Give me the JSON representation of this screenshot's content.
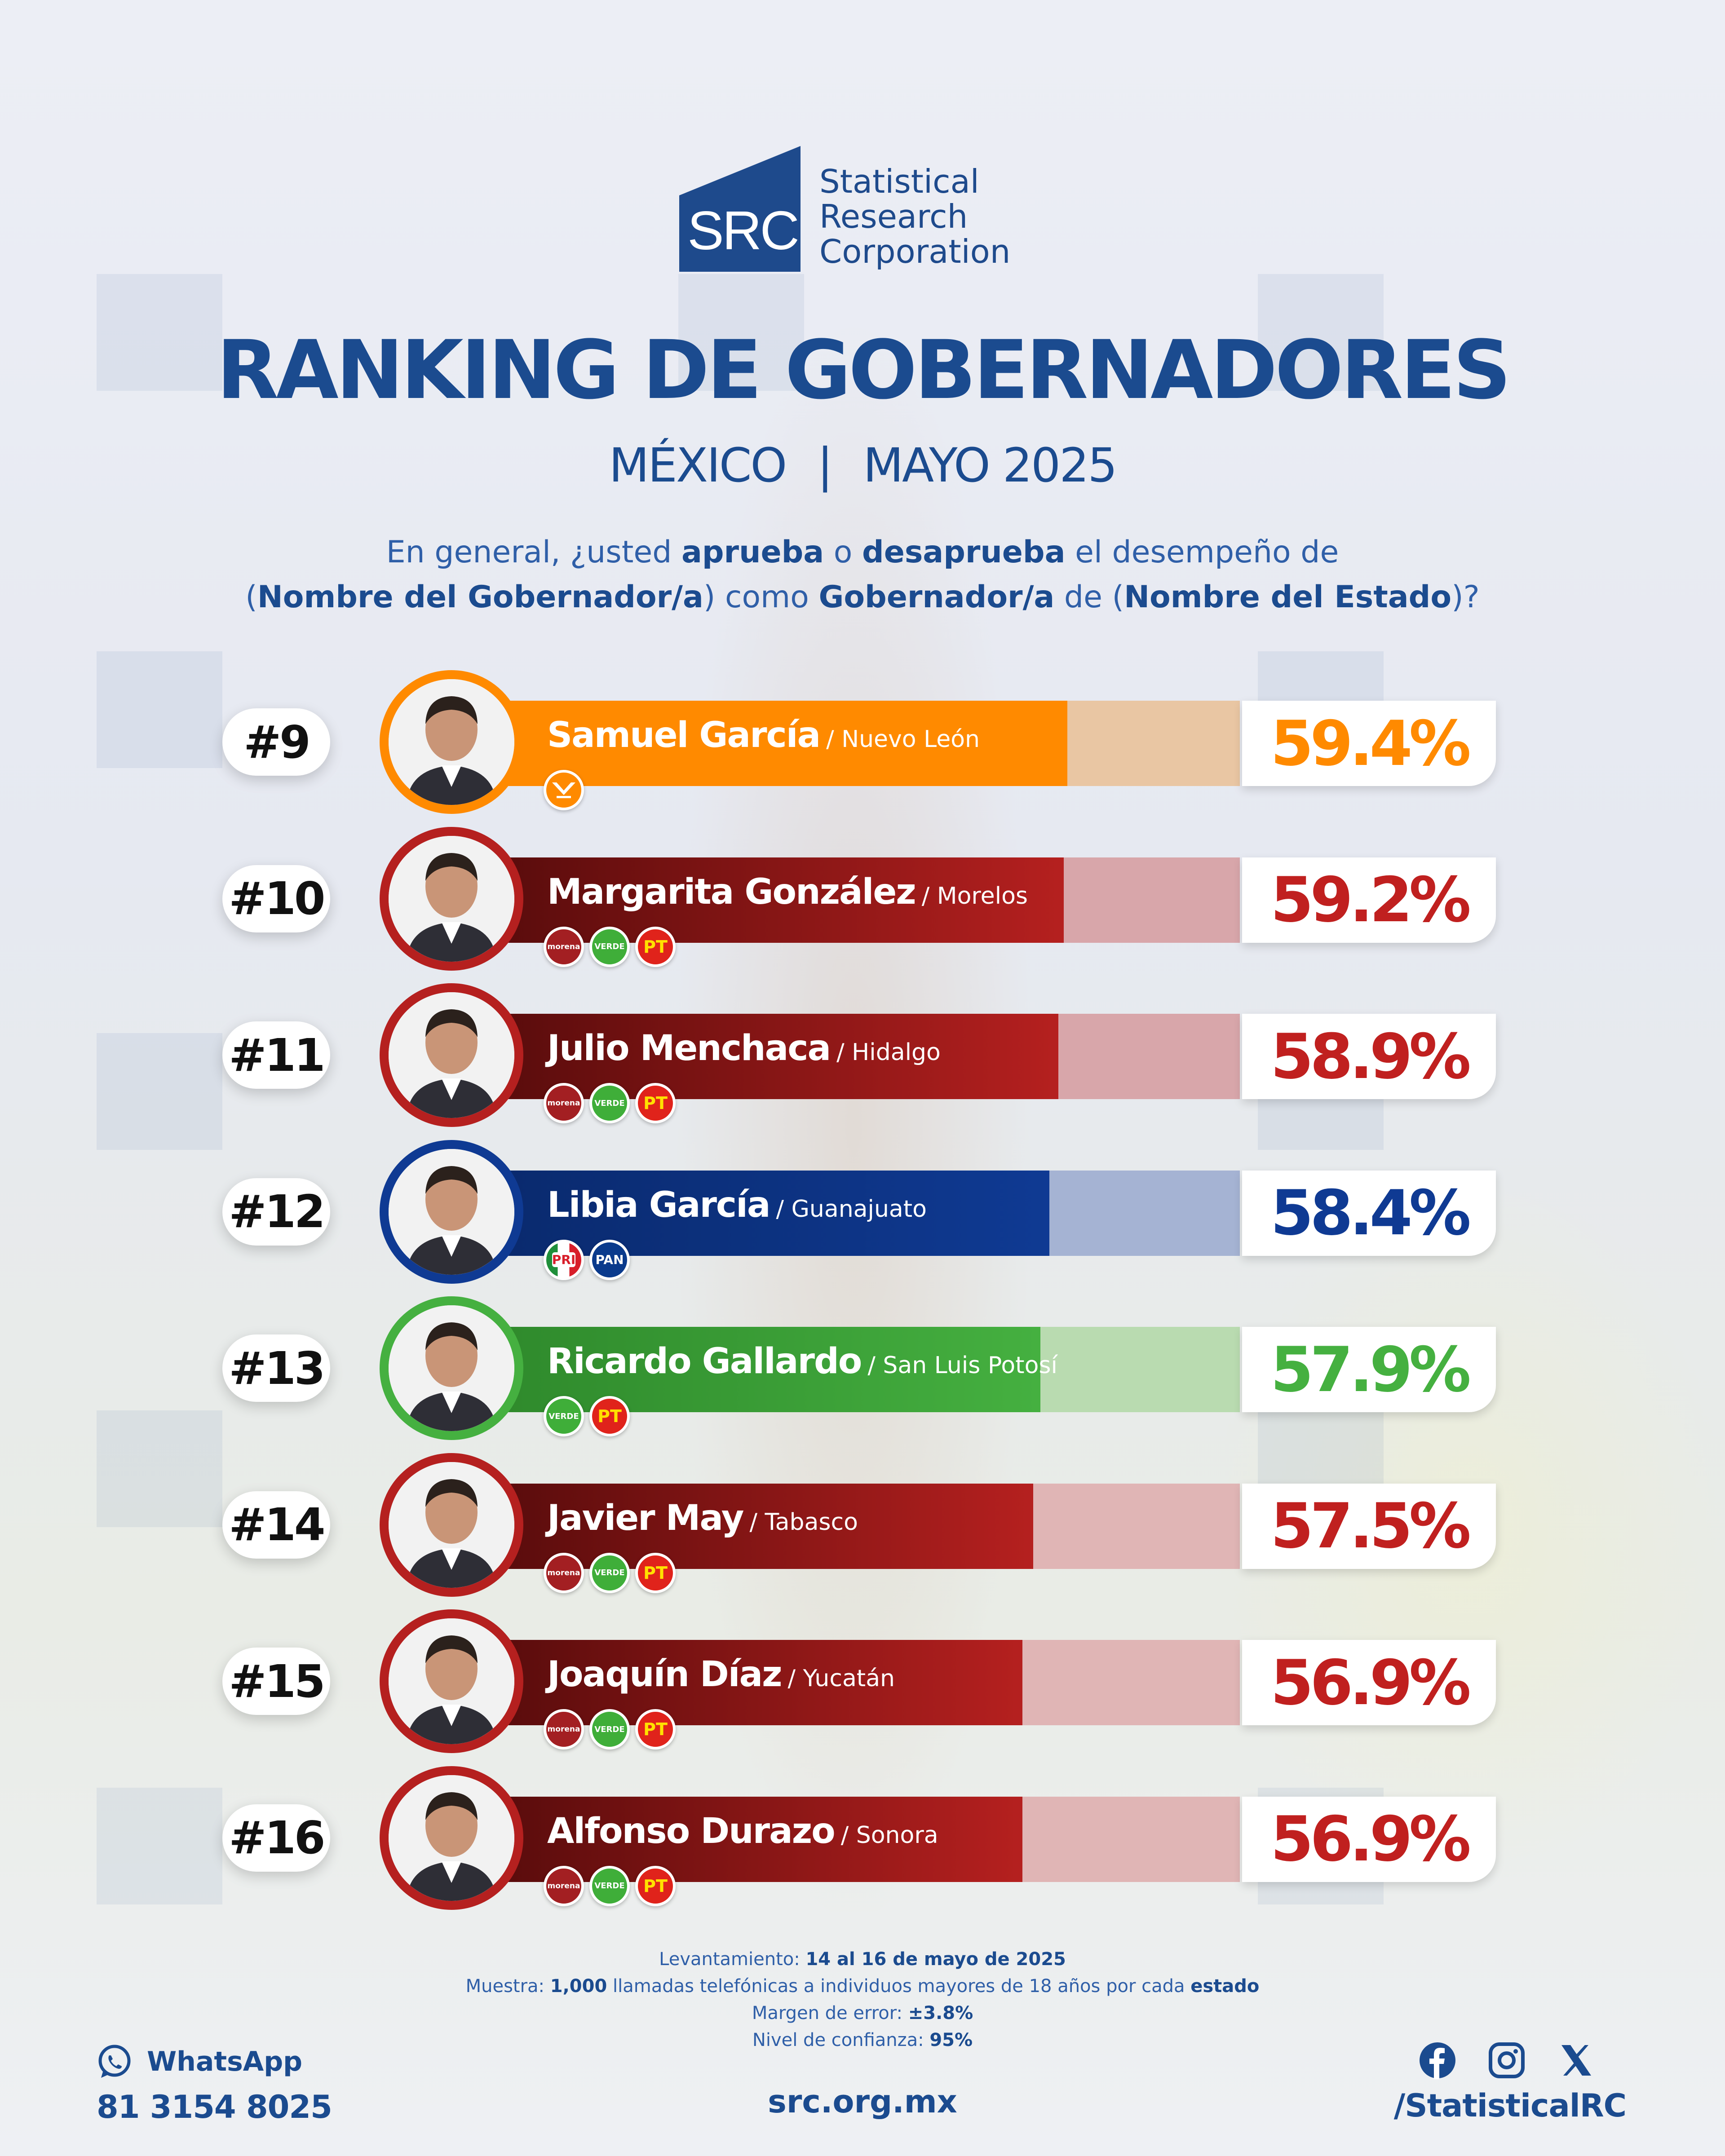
{
  "brand": {
    "mark": "SRC",
    "name_lines": [
      "Statistical",
      "Research",
      "Corporation"
    ],
    "color": "#1e4a8c"
  },
  "title": "RANKING DE GOBERNADORES",
  "subtitle": {
    "country": "MÉXICO",
    "separator": "|",
    "period": "MAYO 2025"
  },
  "question": {
    "p1": "En general, ¿usted ",
    "b1": "aprueba",
    "p2": " o ",
    "b2": "desaprueba",
    "p3": " el desempeño de",
    "p4": "(",
    "b3": "Nombre del Gobernador/a",
    "p5": ") como ",
    "b4": "Gobernador/a",
    "p6": " de (",
    "b5": "Nombre del Estado",
    "p7": ")?"
  },
  "chart_data": {
    "type": "bar",
    "title": "RANKING DE GOBERNADORES",
    "unit": "%",
    "categories": [
      "Samuel García",
      "Margarita González",
      "Julio Menchaca",
      "Libia García",
      "Ricardo Gallardo",
      "Javier May",
      "Joaquín Díaz",
      "Alfonso Durazo"
    ],
    "values": [
      59.4,
      59.2,
      58.9,
      58.4,
      57.9,
      57.5,
      56.9,
      56.9
    ],
    "rows": [
      {
        "rank": "#9",
        "name": "Samuel García",
        "state": "/ Nuevo León",
        "value": 59.4,
        "label": "59.4%",
        "color": "#ff8a00",
        "rest_color": "#e9c6a3",
        "parties": [
          "mc"
        ]
      },
      {
        "rank": "#10",
        "name": "Margarita González",
        "state": "/ Morelos",
        "value": 59.2,
        "label": "59.2%",
        "color": "#b5201f",
        "rest_color": "#d8a6aa",
        "parties": [
          "morena",
          "verde",
          "pt"
        ]
      },
      {
        "rank": "#11",
        "name": "Julio Menchaca",
        "state": "/ Hidalgo",
        "value": 58.9,
        "label": "58.9%",
        "color": "#b5201f",
        "rest_color": "#d8a6aa",
        "parties": [
          "morena",
          "verde",
          "pt"
        ]
      },
      {
        "rank": "#12",
        "name": "Libia García",
        "state": "/ Guanajuato",
        "value": 58.4,
        "label": "58.4%",
        "color": "#0f3a93",
        "rest_color": "#a5b3d3",
        "parties": [
          "pri",
          "pan"
        ]
      },
      {
        "rank": "#13",
        "name": "Ricardo Gallardo",
        "state": "/ San Luis Potosí",
        "value": 57.9,
        "label": "57.9%",
        "color": "#45b040",
        "rest_color": "#b9dbb0",
        "parties": [
          "verde",
          "pt"
        ]
      },
      {
        "rank": "#14",
        "name": "Javier May",
        "state": "/ Tabasco",
        "value": 57.5,
        "label": "57.5%",
        "color": "#b5201f",
        "rest_color": "#e0b5b5",
        "parties": [
          "morena",
          "verde",
          "pt"
        ]
      },
      {
        "rank": "#15",
        "name": "Joaquín Díaz",
        "state": "/ Yucatán",
        "value": 56.9,
        "label": "56.9%",
        "color": "#b5201f",
        "rest_color": "#e0b5b5",
        "parties": [
          "morena",
          "verde",
          "pt"
        ]
      },
      {
        "rank": "#16",
        "name": "Alfonso Durazo",
        "state": "/ Sonora",
        "value": 56.9,
        "label": "56.9%",
        "color": "#b5201f",
        "rest_color": "#e0b5b5",
        "parties": [
          "morena",
          "verde",
          "pt"
        ]
      }
    ],
    "party_logos": {
      "mc": {
        "text": "",
        "color": "#ff8a00"
      },
      "morena": {
        "text": "morena",
        "color": "#a31f22"
      },
      "verde": {
        "text": "VERDE",
        "color": "#3fae39"
      },
      "pt": {
        "text": "PT",
        "color": "#e0231b"
      },
      "pri": {
        "text": "PRI",
        "color": "#ffffff"
      },
      "pan": {
        "text": "PAN",
        "color": "#0a3a8c"
      }
    }
  },
  "methodology": {
    "l1_label": "Levantamiento: ",
    "l1_value": "14 al 16 de mayo de 2025",
    "l2_label": "Muestra: ",
    "l2_value": "1,000",
    "l2_text": " llamadas telefónicas a individuos mayores de 18 años por cada ",
    "l2_bold": "estado",
    "l3_label": "Margen de error: ",
    "l3_value": "±3.8%",
    "l4_label": "Nivel de confianza: ",
    "l4_value": "95%"
  },
  "footer": {
    "whatsapp_label": "WhatsApp",
    "whatsapp_phone": "81 3154 8025",
    "website": "src.org.mx",
    "social_handle": "/StatisticalRC",
    "icons": [
      "facebook-icon",
      "instagram-icon",
      "x-icon"
    ]
  }
}
